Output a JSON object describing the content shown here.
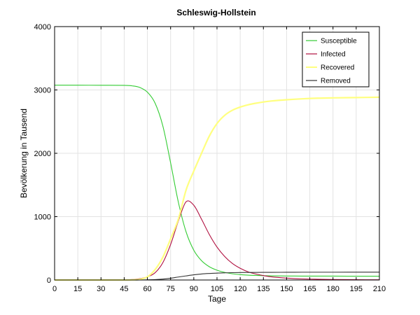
{
  "chart_data": {
    "type": "line",
    "title": "Schleswig-Hollstein",
    "xlabel": "Tage",
    "ylabel": "Bevölkerung in Tausend",
    "xlim": [
      0,
      210
    ],
    "ylim": [
      0,
      4000
    ],
    "xticks": [
      "0",
      "15",
      "30",
      "45",
      "60",
      "75",
      "90",
      "105",
      "120",
      "135",
      "150",
      "165",
      "180",
      "195",
      "210"
    ],
    "yticks": [
      "0",
      "1000",
      "2000",
      "3000",
      "4000"
    ],
    "grid": true,
    "legend_position": "top-right",
    "x": [
      0,
      15,
      30,
      45,
      50,
      55,
      60,
      65,
      70,
      75,
      80,
      85,
      90,
      95,
      100,
      105,
      110,
      115,
      120,
      125,
      130,
      135,
      140,
      150,
      160,
      170,
      180,
      195,
      210
    ],
    "series": [
      {
        "name": "Susceptible",
        "color": "#33cc33",
        "values": [
          3075,
          3075,
          3074,
          3072,
          3065,
          3040,
          2965,
          2790,
          2430,
          1850,
          1230,
          760,
          470,
          305,
          210,
          155,
          120,
          98,
          85,
          77,
          72,
          68,
          66,
          63,
          62,
          61,
          61,
          60,
          60
        ]
      },
      {
        "name": "Infected",
        "color": "#b01040",
        "values": [
          0,
          0,
          1,
          3,
          8,
          20,
          50,
          115,
          275,
          560,
          930,
          1235,
          1180,
          960,
          720,
          520,
          370,
          260,
          185,
          130,
          95,
          70,
          50,
          30,
          18,
          12,
          8,
          5,
          3
        ]
      },
      {
        "name": "Recovered",
        "color": "#ffff80",
        "values": [
          0,
          0,
          0,
          0,
          2,
          10,
          50,
          165,
          360,
          650,
          960,
          1420,
          1720,
          2000,
          2270,
          2470,
          2600,
          2680,
          2730,
          2765,
          2790,
          2810,
          2825,
          2845,
          2860,
          2870,
          2875,
          2880,
          2885
        ]
      },
      {
        "name": "Removed",
        "color": "#333333",
        "values": [
          0,
          0,
          0,
          0,
          0,
          0,
          2,
          6,
          14,
          28,
          47,
          65,
          82,
          95,
          103,
          109,
          113,
          116,
          118,
          119,
          120,
          121,
          121,
          122,
          123,
          123,
          123,
          124,
          124
        ]
      }
    ]
  }
}
